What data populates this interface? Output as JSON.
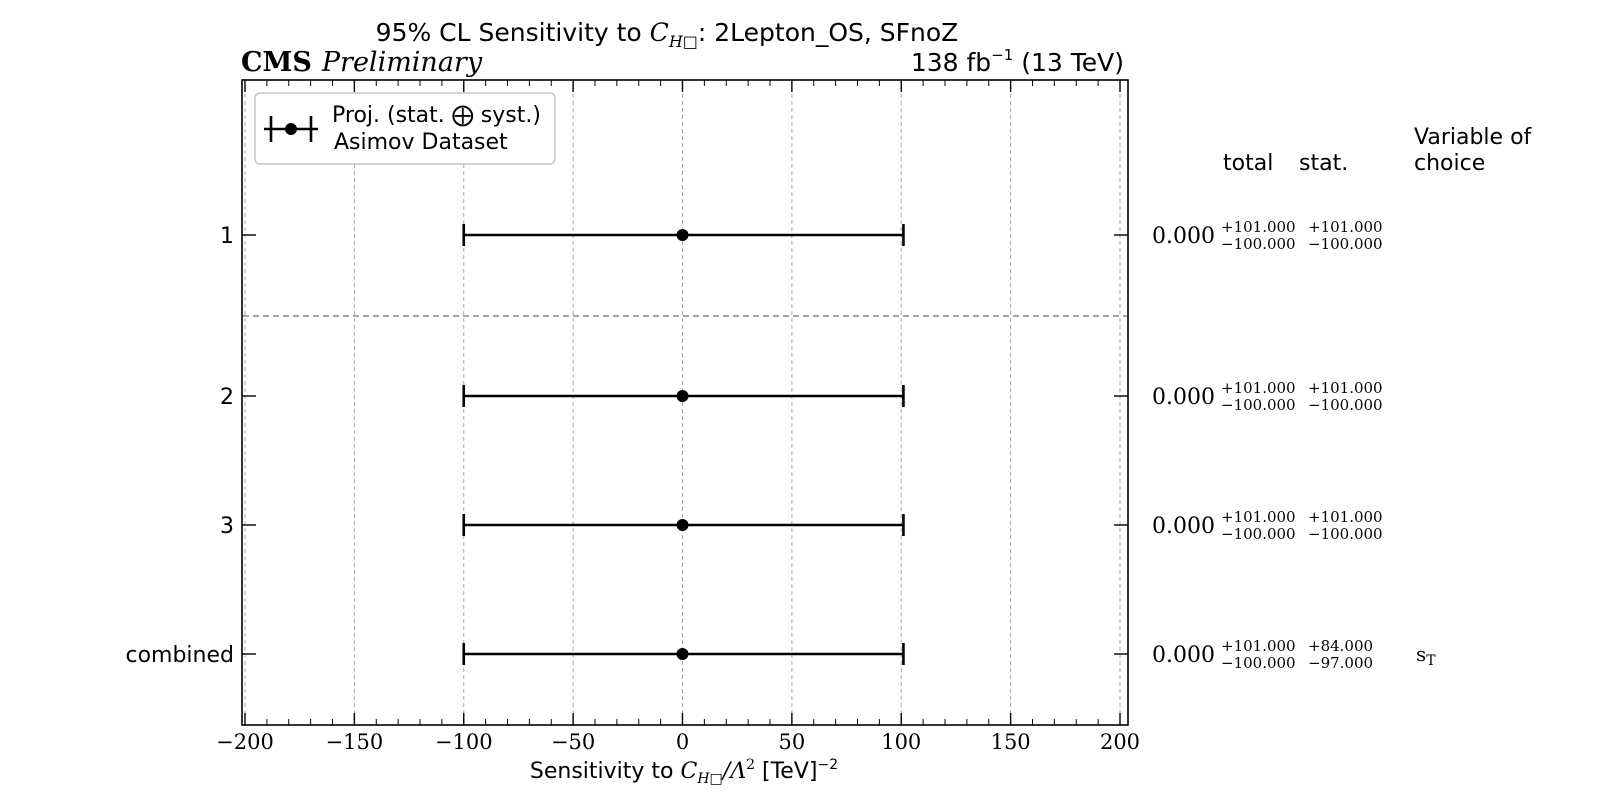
{
  "header": {
    "title_prefix": "95% CL Sensitivity to ",
    "title_coef_main": "C",
    "title_coef_sub": "H□",
    "title_suffix": ": 2Lepton_OS, SFnoZ",
    "cms_label": "CMS",
    "preliminary_label": "Preliminary",
    "lumi_prefix": "138 fb",
    "lumi_exp": "−1",
    "lumi_suffix": " (13 TeV)"
  },
  "legend": {
    "line1_part1": "Proj. (stat. ",
    "line1_symbol": "⨁",
    "line1_part2": " syst.)",
    "line2": "Asimov Dataset"
  },
  "columns": {
    "total": "total",
    "stat": "stat.",
    "variable_line1": "Variable of",
    "variable_line2": "choice"
  },
  "xaxis": {
    "label_prefix": "Sensitivity to ",
    "label_coef_main": "C",
    "label_coef_sub": "H□",
    "label_mid": "/Λ",
    "label_sq": "2",
    "label_suffix": " [TeV]",
    "label_exp": "−2"
  },
  "chart_data": {
    "type": "errorbar",
    "xlim": [
      -200,
      200
    ],
    "xticks": [
      -200,
      -150,
      -100,
      -50,
      0,
      50,
      100,
      150,
      200
    ],
    "xtick_labels": [
      "−200",
      "−150",
      "−100",
      "−50",
      "0",
      "50",
      "100",
      "150",
      "200"
    ],
    "grid": true,
    "legend_position": "top-left",
    "rows": [
      {
        "label": "1",
        "central": 0.0,
        "central_text": "0.000",
        "low": -100.0,
        "high": 101.0,
        "total_plus": "+101.000",
        "total_minus": "−100.000",
        "stat_plus": "+101.000",
        "stat_minus": "−100.000",
        "variable": ""
      },
      {
        "label": "2",
        "central": 0.0,
        "central_text": "0.000",
        "low": -100.0,
        "high": 101.0,
        "total_plus": "+101.000",
        "total_minus": "−100.000",
        "stat_plus": "+101.000",
        "stat_minus": "−100.000",
        "variable": ""
      },
      {
        "label": "3",
        "central": 0.0,
        "central_text": "0.000",
        "low": -100.0,
        "high": 101.0,
        "total_plus": "+101.000",
        "total_minus": "−100.000",
        "stat_plus": "+101.000",
        "stat_minus": "−100.000",
        "variable": ""
      },
      {
        "label": "combined",
        "central": 0.0,
        "central_text": "0.000",
        "low": -100.0,
        "high": 101.0,
        "total_plus": "+101.000",
        "total_minus": "−100.000",
        "stat_plus": "+84.000",
        "stat_minus": "−97.000",
        "variable": "s_T"
      }
    ]
  }
}
